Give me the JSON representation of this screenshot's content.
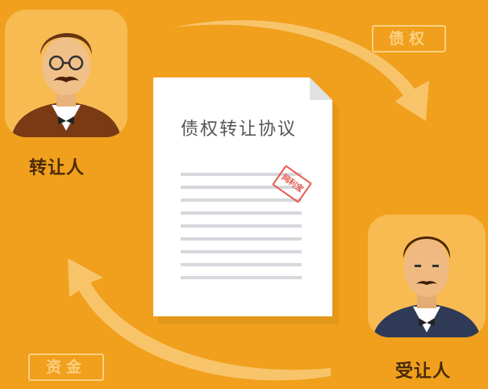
{
  "tags": {
    "debt": "债权",
    "funds": "资金"
  },
  "document": {
    "title": "债权转让协议",
    "seal": "网利宝"
  },
  "roles": {
    "transferor": "转让人",
    "transferee": "受让人"
  },
  "colors": {
    "background": "#f0a01c",
    "card": "#f7bb52",
    "arrow": "#f8c46a",
    "label": "#4a2a0a",
    "seal": "#e85a4f"
  }
}
